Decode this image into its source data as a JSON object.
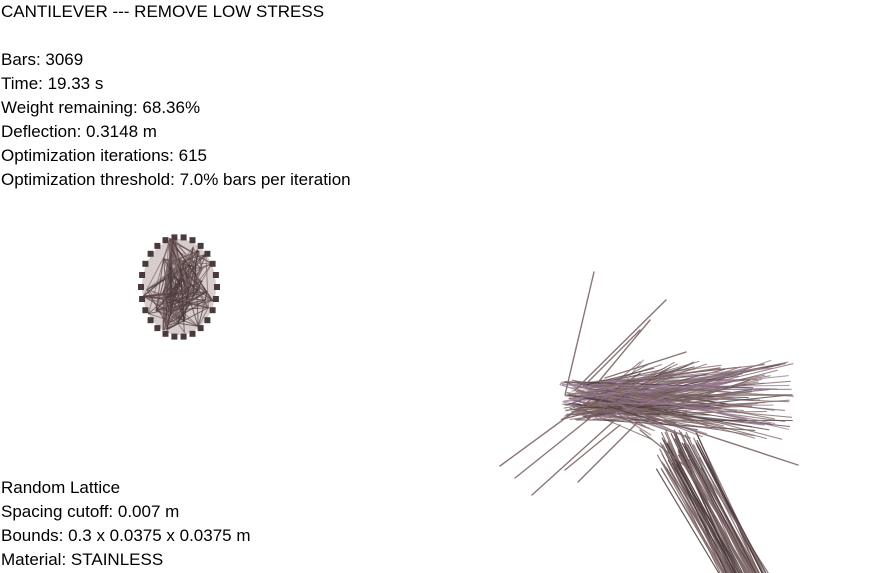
{
  "header": {
    "title": "CANTILEVER --- REMOVE LOW STRESS"
  },
  "stats": {
    "bars": "Bars: 3069",
    "time": "Time: 19.33 s",
    "weight": "Weight remaining: 68.36%",
    "deflection": "Deflection: 0.3148 m",
    "iterations": "Optimization iterations: 615",
    "threshold": "Optimization threshold: 7.0% bars per iteration"
  },
  "lattice_info": {
    "type": "Random Lattice",
    "spacing": "Spacing cutoff: 0.007 m",
    "bounds": "Bounds: 0.3 x 0.0375 x 0.0375 m",
    "material": "Material: STAINLESS"
  },
  "colors": {
    "bar": "#7d6666",
    "bar_dark": "#4a3a3c",
    "bar_light": "#b8a4a4",
    "bar_tint": "#9a7a9a"
  }
}
